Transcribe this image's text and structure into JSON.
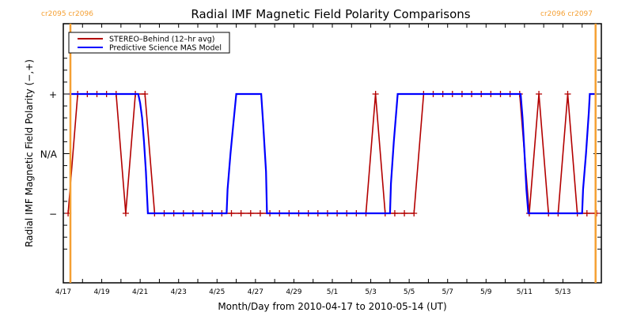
{
  "chart_data": {
    "type": "line",
    "title": "Radial IMF Magnetic Field Polarity Comparisons",
    "xlabel": "Month/Day from 2010-04-17 to 2010-05-14 (UT)",
    "ylabel": "Radial IMF Magnetic Field Polarity (−,+)",
    "x_units": "days since 2010-04-17 00:00 UT",
    "xlim": [
      0,
      28
    ],
    "ylim": [
      -1.6,
      1.6
    ],
    "x_ticks": [
      {
        "value": 0,
        "label": "4/17"
      },
      {
        "value": 2,
        "label": "4/19"
      },
      {
        "value": 4,
        "label": "4/21"
      },
      {
        "value": 6,
        "label": "4/23"
      },
      {
        "value": 8,
        "label": "4/25"
      },
      {
        "value": 10,
        "label": "4/27"
      },
      {
        "value": 12,
        "label": "4/29"
      },
      {
        "value": 14,
        "label": "5/1"
      },
      {
        "value": 16,
        "label": "5/3"
      },
      {
        "value": 18,
        "label": "5/5"
      },
      {
        "value": 20,
        "label": "5/7"
      },
      {
        "value": 22,
        "label": "5/9"
      },
      {
        "value": 24,
        "label": "5/11"
      },
      {
        "value": 26,
        "label": "5/13"
      }
    ],
    "y_ticks": [
      {
        "value": 1,
        "label": "+"
      },
      {
        "value": 0,
        "label": "N/A"
      },
      {
        "value": -1,
        "label": "−"
      }
    ],
    "carrington_markers": [
      {
        "x": 0.37,
        "label": "cr2095 cr2096",
        "color": "#f5a033"
      },
      {
        "x": 27.7,
        "label": "cr2096 cr2097",
        "color": "#f5a033"
      }
    ],
    "legend": {
      "position": "top-left",
      "entries": [
        {
          "name": "STEREO–Behind (12–hr avg)",
          "color": "#b30000"
        },
        {
          "name": "Predictive Science MAS Model",
          "color": "#0000ff"
        }
      ]
    },
    "series": [
      {
        "name": "STEREO–Behind (12–hr avg)",
        "color": "#b30000",
        "markers": true,
        "points": [
          [
            0.25,
            -1
          ],
          [
            0.75,
            1
          ],
          [
            1.25,
            1
          ],
          [
            1.75,
            1
          ],
          [
            2.25,
            1
          ],
          [
            2.75,
            1
          ],
          [
            3.25,
            -1
          ],
          [
            3.75,
            1
          ],
          [
            4.25,
            1
          ],
          [
            4.75,
            -1
          ],
          [
            5.25,
            -1
          ],
          [
            5.75,
            -1
          ],
          [
            6.25,
            -1
          ],
          [
            6.75,
            -1
          ],
          [
            7.25,
            -1
          ],
          [
            7.75,
            -1
          ],
          [
            8.25,
            -1
          ],
          [
            8.75,
            -1
          ],
          [
            9.25,
            -1
          ],
          [
            9.75,
            -1
          ],
          [
            10.25,
            -1
          ],
          [
            10.75,
            -1
          ],
          [
            11.25,
            -1
          ],
          [
            11.75,
            -1
          ],
          [
            12.25,
            -1
          ],
          [
            12.75,
            -1
          ],
          [
            13.25,
            -1
          ],
          [
            13.75,
            -1
          ],
          [
            14.25,
            -1
          ],
          [
            14.75,
            -1
          ],
          [
            15.25,
            -1
          ],
          [
            15.75,
            -1
          ],
          [
            16.25,
            1
          ],
          [
            16.75,
            -1
          ],
          [
            17.25,
            -1
          ],
          [
            17.75,
            -1
          ],
          [
            18.25,
            -1
          ],
          [
            18.75,
            1
          ],
          [
            19.25,
            1
          ],
          [
            19.75,
            1
          ],
          [
            20.25,
            1
          ],
          [
            20.75,
            1
          ],
          [
            21.25,
            1
          ],
          [
            21.75,
            1
          ],
          [
            22.25,
            1
          ],
          [
            22.75,
            1
          ],
          [
            23.25,
            1
          ],
          [
            23.75,
            1
          ],
          [
            24.25,
            -1
          ],
          [
            24.75,
            1
          ],
          [
            25.25,
            -1
          ],
          [
            25.75,
            -1
          ],
          [
            26.25,
            1
          ],
          [
            26.75,
            -1
          ],
          [
            27.25,
            -1
          ],
          [
            27.75,
            -1
          ]
        ]
      },
      {
        "name": "Predictive Science MAS Model",
        "color": "#0000ff",
        "markers": false,
        "points": [
          [
            0.3,
            1
          ],
          [
            3.9,
            1
          ],
          [
            4.0,
            0.85
          ],
          [
            4.1,
            0.6
          ],
          [
            4.2,
            0.2
          ],
          [
            4.3,
            -0.3
          ],
          [
            4.4,
            -1
          ],
          [
            8.5,
            -1
          ],
          [
            8.55,
            -0.6
          ],
          [
            8.7,
            0
          ],
          [
            8.85,
            0.5
          ],
          [
            9.0,
            1
          ],
          [
            10.3,
            1
          ],
          [
            10.4,
            0.5
          ],
          [
            10.55,
            -0.3
          ],
          [
            10.6,
            -1
          ],
          [
            17.0,
            -1
          ],
          [
            17.05,
            -0.5
          ],
          [
            17.2,
            0.2
          ],
          [
            17.35,
            0.8
          ],
          [
            17.4,
            1
          ],
          [
            23.8,
            1
          ],
          [
            23.9,
            0.6
          ],
          [
            24.0,
            0
          ],
          [
            24.1,
            -0.6
          ],
          [
            24.2,
            -1
          ],
          [
            27.0,
            -1
          ],
          [
            27.05,
            -0.6
          ],
          [
            27.2,
            0
          ],
          [
            27.35,
            0.7
          ],
          [
            27.4,
            1
          ],
          [
            27.7,
            1
          ]
        ]
      }
    ]
  }
}
